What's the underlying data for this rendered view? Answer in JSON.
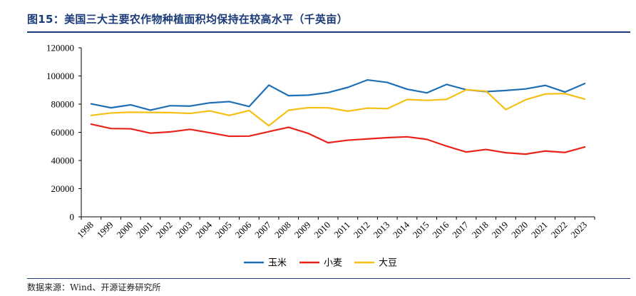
{
  "title": "图15：美国三大主要农作物种植面积均保持在较高水平（千英亩）",
  "source": "数据来源：Wind、开源证券研究所",
  "colors": {
    "title": "#1a3a78",
    "axis": "#000000"
  },
  "chart_data": {
    "type": "line",
    "title": "图15：美国三大主要农作物种植面积均保持在较高水平（千英亩）",
    "xlabel": "",
    "ylabel": "",
    "ylim": [
      0,
      120000
    ],
    "yticks": [
      0,
      20000,
      40000,
      60000,
      80000,
      100000,
      120000
    ],
    "grid": false,
    "legend_position": "bottom",
    "categories": [
      "1998",
      "1999",
      "2000",
      "2001",
      "2002",
      "2003",
      "2004",
      "2005",
      "2006",
      "2007",
      "2008",
      "2009",
      "2010",
      "2011",
      "2012",
      "2013",
      "2014",
      "2015",
      "2016",
      "2017",
      "2018",
      "2019",
      "2020",
      "2021",
      "2022",
      "2023"
    ],
    "series": [
      {
        "name": "玉米",
        "color": "#1f6fb5",
        "values": [
          80200,
          77400,
          79500,
          75700,
          78900,
          78600,
          80900,
          81800,
          78300,
          93500,
          86000,
          86400,
          88200,
          91900,
          97200,
          95400,
          90600,
          88000,
          94000,
          90200,
          88900,
          89700,
          90800,
          93300,
          88600,
          94600
        ]
      },
      {
        "name": "小麦",
        "color": "#e8231c",
        "values": [
          65800,
          62700,
          62500,
          59400,
          60300,
          62100,
          59700,
          57200,
          57300,
          60500,
          63600,
          59200,
          52600,
          54400,
          55300,
          56200,
          56800,
          55000,
          50200,
          46000,
          47800,
          45500,
          44500,
          46700,
          45700,
          49600
        ]
      },
      {
        "name": "大豆",
        "color": "#f5bf16",
        "values": [
          72000,
          73700,
          74300,
          74100,
          74000,
          73400,
          75200,
          72000,
          75500,
          64700,
          75700,
          77500,
          77400,
          75000,
          77200,
          76800,
          83300,
          82700,
          83400,
          90200,
          89200,
          76100,
          83100,
          87200,
          87500,
          83600
        ]
      }
    ]
  }
}
